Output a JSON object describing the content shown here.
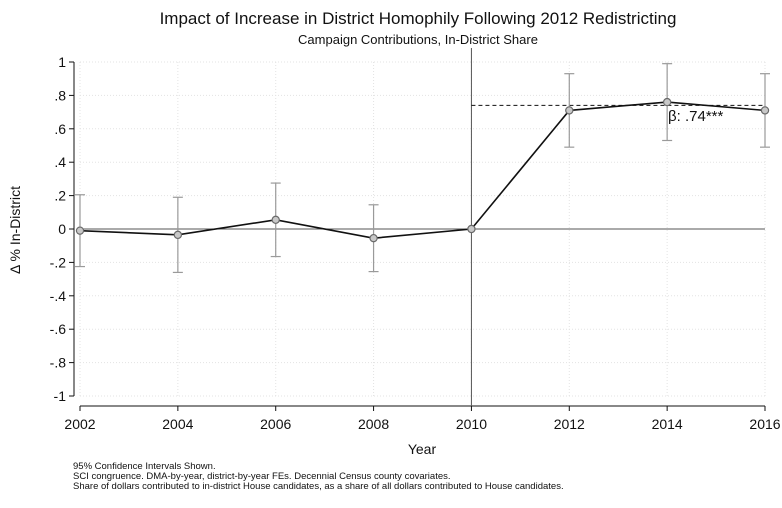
{
  "chart_data": {
    "type": "line",
    "title": "Impact of Increase in District Homophily Following 2012 Redistricting",
    "subtitle": "Campaign Contributions, In-District Share",
    "xlabel": "Year",
    "ylabel": "Δ % In-District",
    "x": [
      2002,
      2004,
      2006,
      2008,
      2010,
      2012,
      2014,
      2016
    ],
    "x_ticks": [
      "2002",
      "2004",
      "2006",
      "2008",
      "2010",
      "2012",
      "2014",
      "2016"
    ],
    "y_ticks": [
      1,
      0.8,
      0.6,
      0.4,
      0.2,
      0,
      -0.2,
      -0.4,
      -0.6,
      -0.8,
      -1
    ],
    "y_tick_labels": [
      "1",
      ".8",
      ".6",
      ".4",
      ".2",
      "0",
      "-.2",
      "-.4",
      "-.6",
      "-.8",
      "-1"
    ],
    "xlim": [
      2002,
      2016
    ],
    "ylim": [
      -1,
      1
    ],
    "series": [
      {
        "values": [
          -0.01,
          -0.035,
          0.055,
          -0.055,
          0.0,
          0.71,
          0.76,
          0.71
        ],
        "ci_low": [
          -0.225,
          -0.26,
          -0.165,
          -0.255,
          0.0,
          0.49,
          0.53,
          0.49
        ],
        "ci_high": [
          0.205,
          0.19,
          0.275,
          0.145,
          0.0,
          0.93,
          0.99,
          0.93
        ]
      }
    ],
    "reference_lines": {
      "vertical_x": 2010,
      "horizontal_y": 0,
      "beta_line": {
        "y": 0.74,
        "x_start": 2010,
        "x_end": 2016
      }
    },
    "annotation": "β: .74***",
    "grid": true,
    "notes": [
      "95% Confidence Intervals Shown.",
      "SCI congruence. DMA-by-year, district-by-year FEs. Decennial Census county covariates.",
      "Share of dollars contributed to in-district House candidates, as a share of all dollars contributed to House candidates."
    ],
    "colors": {
      "line": "#111111",
      "ci": "#9a9a9a",
      "marker_fill": "#c8c8c8",
      "marker_stroke": "#6a6a6a",
      "grid": "#e3e3e3"
    }
  }
}
